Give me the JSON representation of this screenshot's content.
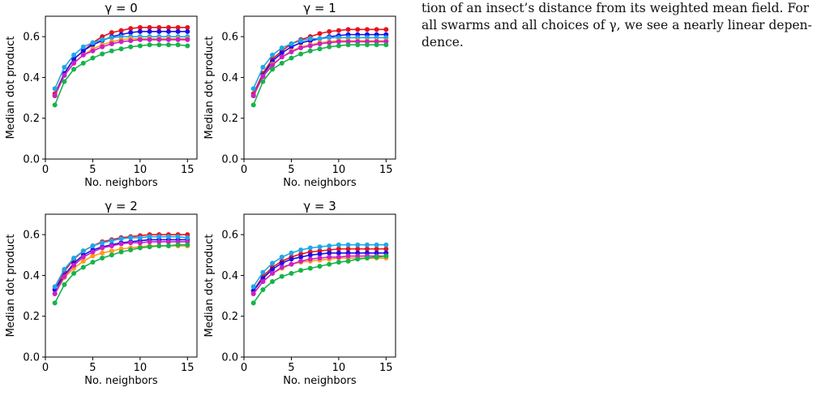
{
  "paper_text": [
    "tion of an insect’s distance from its weighted mean field. For",
    "all swarms and all choices of γ, we see a nearly linear depen-",
    "dence."
  ],
  "chart_data": [
    {
      "type": "line",
      "title": "γ = 0",
      "xlabel": "No. neighbors",
      "ylabel": "Median dot product",
      "xlim": [
        0,
        16
      ],
      "ylim": [
        0,
        0.7
      ],
      "xticks": [
        "0",
        "5",
        "10",
        "15"
      ],
      "yticks": [
        "0.0",
        "0.2",
        "0.4",
        "0.6"
      ],
      "x": [
        1,
        2,
        3,
        4,
        5,
        6,
        7,
        8,
        9,
        10,
        11,
        12,
        13,
        14,
        15
      ],
      "series": [
        {
          "color": "#e8121a",
          "values": [
            0.32,
            0.42,
            0.49,
            0.53,
            0.57,
            0.6,
            0.62,
            0.63,
            0.64,
            0.645,
            0.645,
            0.645,
            0.645,
            0.645,
            0.645
          ]
        },
        {
          "color": "#1a11e6",
          "values": [
            0.31,
            0.42,
            0.49,
            0.53,
            0.56,
            0.58,
            0.6,
            0.61,
            0.62,
            0.625,
            0.625,
            0.625,
            0.625,
            0.625,
            0.625
          ]
        },
        {
          "color": "#1ca8e8",
          "values": [
            0.345,
            0.45,
            0.51,
            0.55,
            0.57,
            0.585,
            0.595,
            0.6,
            0.6,
            0.6,
            0.6,
            0.6,
            0.6,
            0.6,
            0.6
          ]
        },
        {
          "color": "#ff9a1a",
          "values": [
            0.31,
            0.41,
            0.47,
            0.51,
            0.54,
            0.56,
            0.575,
            0.585,
            0.59,
            0.59,
            0.59,
            0.59,
            0.59,
            0.59,
            0.59
          ]
        },
        {
          "color": "#cc1fc8",
          "values": [
            0.31,
            0.41,
            0.47,
            0.51,
            0.53,
            0.55,
            0.565,
            0.575,
            0.58,
            0.585,
            0.585,
            0.585,
            0.585,
            0.585,
            0.585
          ]
        },
        {
          "color": "#17b34a",
          "values": [
            0.265,
            0.38,
            0.44,
            0.47,
            0.495,
            0.515,
            0.53,
            0.54,
            0.55,
            0.555,
            0.56,
            0.56,
            0.56,
            0.56,
            0.555
          ]
        }
      ]
    },
    {
      "type": "line",
      "title": "γ = 1",
      "xlabel": "No. neighbors",
      "ylabel": "Median dot product",
      "xlim": [
        0,
        16
      ],
      "ylim": [
        0,
        0.7
      ],
      "xticks": [
        "0",
        "5",
        "10",
        "15"
      ],
      "yticks": [
        "0.0",
        "0.2",
        "0.4",
        "0.6"
      ],
      "x": [
        1,
        2,
        3,
        4,
        5,
        6,
        7,
        8,
        9,
        10,
        11,
        12,
        13,
        14,
        15
      ],
      "series": [
        {
          "color": "#e8121a",
          "values": [
            0.32,
            0.42,
            0.49,
            0.53,
            0.565,
            0.585,
            0.6,
            0.615,
            0.625,
            0.63,
            0.635,
            0.635,
            0.635,
            0.635,
            0.635
          ]
        },
        {
          "color": "#1a11e6",
          "values": [
            0.31,
            0.41,
            0.48,
            0.52,
            0.55,
            0.57,
            0.58,
            0.59,
            0.6,
            0.605,
            0.61,
            0.61,
            0.61,
            0.61,
            0.61
          ]
        },
        {
          "color": "#1ca8e8",
          "values": [
            0.345,
            0.45,
            0.51,
            0.545,
            0.565,
            0.58,
            0.59,
            0.59,
            0.595,
            0.595,
            0.595,
            0.595,
            0.595,
            0.595,
            0.595
          ]
        },
        {
          "color": "#ff9a1a",
          "values": [
            0.31,
            0.405,
            0.465,
            0.5,
            0.53,
            0.55,
            0.56,
            0.57,
            0.575,
            0.58,
            0.58,
            0.58,
            0.58,
            0.58,
            0.58
          ]
        },
        {
          "color": "#cc1fc8",
          "values": [
            0.31,
            0.405,
            0.46,
            0.5,
            0.525,
            0.545,
            0.555,
            0.565,
            0.57,
            0.575,
            0.575,
            0.575,
            0.575,
            0.575,
            0.575
          ]
        },
        {
          "color": "#17b34a",
          "values": [
            0.265,
            0.38,
            0.44,
            0.47,
            0.495,
            0.515,
            0.53,
            0.54,
            0.55,
            0.555,
            0.56,
            0.56,
            0.56,
            0.56,
            0.56
          ]
        }
      ]
    },
    {
      "type": "line",
      "title": "γ = 2",
      "xlabel": "No. neighbors",
      "ylabel": "Median dot product",
      "xlim": [
        0,
        16
      ],
      "ylim": [
        0,
        0.7
      ],
      "xticks": [
        "0",
        "5",
        "10",
        "15"
      ],
      "yticks": [
        "0.0",
        "0.2",
        "0.4",
        "0.6"
      ],
      "x": [
        1,
        2,
        3,
        4,
        5,
        6,
        7,
        8,
        9,
        10,
        11,
        12,
        13,
        14,
        15
      ],
      "series": [
        {
          "color": "#e8121a",
          "values": [
            0.33,
            0.42,
            0.48,
            0.52,
            0.545,
            0.565,
            0.575,
            0.585,
            0.59,
            0.595,
            0.6,
            0.6,
            0.6,
            0.6,
            0.6
          ]
        },
        {
          "color": "#1a11e6",
          "values": [
            0.33,
            0.4,
            0.46,
            0.5,
            0.525,
            0.54,
            0.55,
            0.56,
            0.565,
            0.57,
            0.575,
            0.575,
            0.575,
            0.575,
            0.575
          ]
        },
        {
          "color": "#1ca8e8",
          "values": [
            0.345,
            0.43,
            0.485,
            0.52,
            0.545,
            0.56,
            0.57,
            0.58,
            0.585,
            0.585,
            0.59,
            0.59,
            0.59,
            0.59,
            0.585
          ]
        },
        {
          "color": "#ff9a1a",
          "values": [
            0.31,
            0.39,
            0.435,
            0.47,
            0.495,
            0.51,
            0.52,
            0.53,
            0.535,
            0.54,
            0.545,
            0.545,
            0.545,
            0.545,
            0.545
          ]
        },
        {
          "color": "#cc1fc8",
          "values": [
            0.31,
            0.395,
            0.45,
            0.49,
            0.515,
            0.535,
            0.545,
            0.555,
            0.56,
            0.56,
            0.565,
            0.565,
            0.565,
            0.565,
            0.565
          ]
        },
        {
          "color": "#17b34a",
          "values": [
            0.265,
            0.355,
            0.41,
            0.44,
            0.465,
            0.485,
            0.5,
            0.515,
            0.525,
            0.535,
            0.54,
            0.545,
            0.545,
            0.55,
            0.55
          ]
        }
      ]
    },
    {
      "type": "line",
      "title": "γ = 3",
      "xlabel": "No. neighbors",
      "ylabel": "Median dot product",
      "xlim": [
        0,
        16
      ],
      "ylim": [
        0,
        0.7
      ],
      "xticks": [
        "0",
        "5",
        "10",
        "15"
      ],
      "yticks": [
        "0.0",
        "0.2",
        "0.4",
        "0.6"
      ],
      "x": [
        1,
        2,
        3,
        4,
        5,
        6,
        7,
        8,
        9,
        10,
        11,
        12,
        13,
        14,
        15
      ],
      "series": [
        {
          "color": "#e8121a",
          "values": [
            0.325,
            0.395,
            0.44,
            0.47,
            0.49,
            0.505,
            0.515,
            0.52,
            0.525,
            0.53,
            0.53,
            0.53,
            0.53,
            0.53,
            0.53
          ]
        },
        {
          "color": "#1a11e6",
          "values": [
            0.325,
            0.385,
            0.43,
            0.46,
            0.48,
            0.49,
            0.5,
            0.505,
            0.51,
            0.51,
            0.51,
            0.51,
            0.51,
            0.51,
            0.51
          ]
        },
        {
          "color": "#1ca8e8",
          "values": [
            0.345,
            0.415,
            0.46,
            0.49,
            0.51,
            0.525,
            0.535,
            0.54,
            0.545,
            0.55,
            0.55,
            0.55,
            0.55,
            0.55,
            0.55
          ]
        },
        {
          "color": "#ff9a1a",
          "values": [
            0.31,
            0.37,
            0.41,
            0.435,
            0.455,
            0.465,
            0.47,
            0.475,
            0.48,
            0.485,
            0.485,
            0.485,
            0.485,
            0.485,
            0.485
          ]
        },
        {
          "color": "#cc1fc8",
          "values": [
            0.31,
            0.37,
            0.41,
            0.44,
            0.455,
            0.47,
            0.48,
            0.485,
            0.49,
            0.49,
            0.495,
            0.495,
            0.495,
            0.495,
            0.495
          ]
        },
        {
          "color": "#17b34a",
          "values": [
            0.265,
            0.33,
            0.37,
            0.395,
            0.41,
            0.425,
            0.435,
            0.445,
            0.455,
            0.465,
            0.47,
            0.48,
            0.485,
            0.49,
            0.495
          ]
        }
      ]
    }
  ]
}
